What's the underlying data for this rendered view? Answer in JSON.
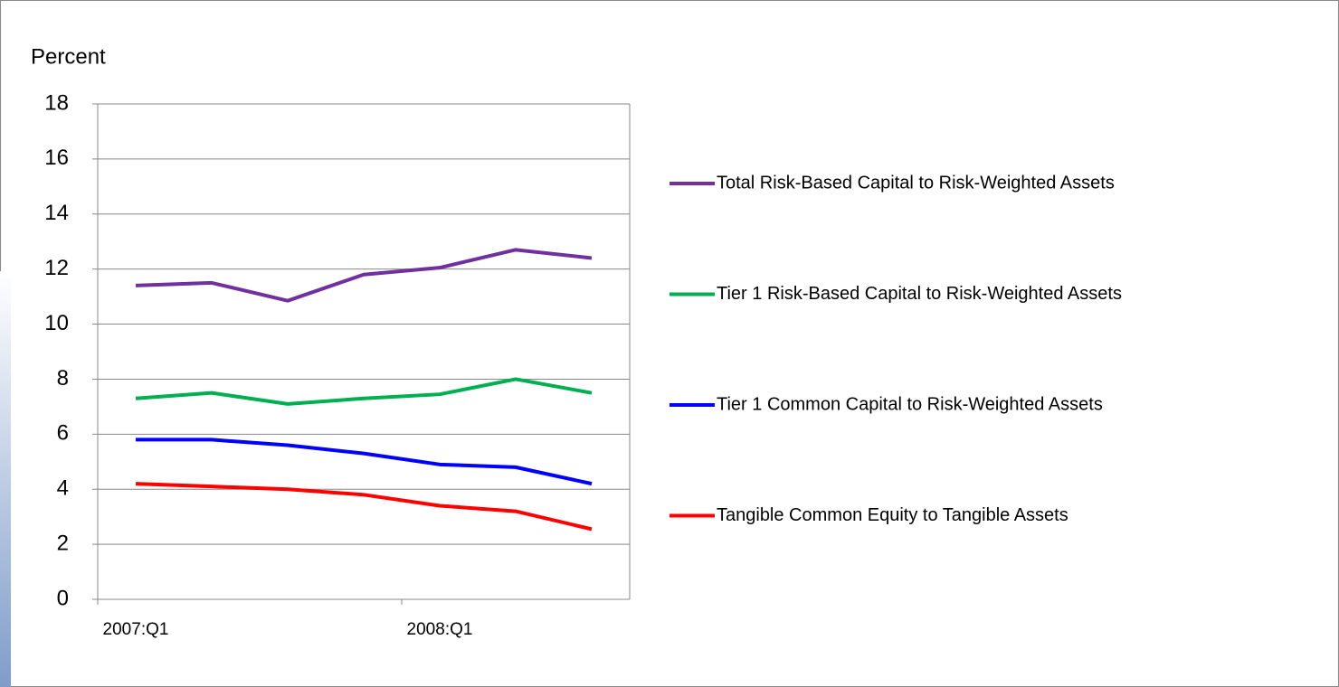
{
  "chart_data": {
    "type": "line",
    "y_label": "Percent",
    "categories": [
      "2007:Q1",
      null,
      null,
      null,
      "2008:Q1",
      null,
      null
    ],
    "ylim": [
      0,
      18
    ],
    "yticks": [
      0,
      2,
      4,
      6,
      8,
      10,
      12,
      14,
      16,
      18
    ],
    "grid": true,
    "series": [
      {
        "name": "Total Risk-Based Capital to Risk-Weighted Assets",
        "color": "#7030a0",
        "values": [
          11.4,
          11.5,
          10.85,
          11.8,
          12.05,
          12.7,
          12.4
        ]
      },
      {
        "name": "Tier 1 Risk-Based Capital to Risk-Weighted Assets",
        "color": "#00b050",
        "values": [
          7.3,
          7.5,
          7.1,
          7.3,
          7.45,
          8.0,
          7.5
        ]
      },
      {
        "name": "Tier 1 Common Capital to Risk-Weighted Assets",
        "color": "#0000ff",
        "values": [
          5.8,
          5.8,
          5.6,
          5.3,
          4.9,
          4.8,
          4.2
        ]
      },
      {
        "name": "Tangible Common Equity to Tangible Assets",
        "color": "#ff0000",
        "values": [
          4.2,
          4.1,
          4.0,
          3.8,
          3.4,
          3.2,
          2.55
        ]
      }
    ]
  }
}
